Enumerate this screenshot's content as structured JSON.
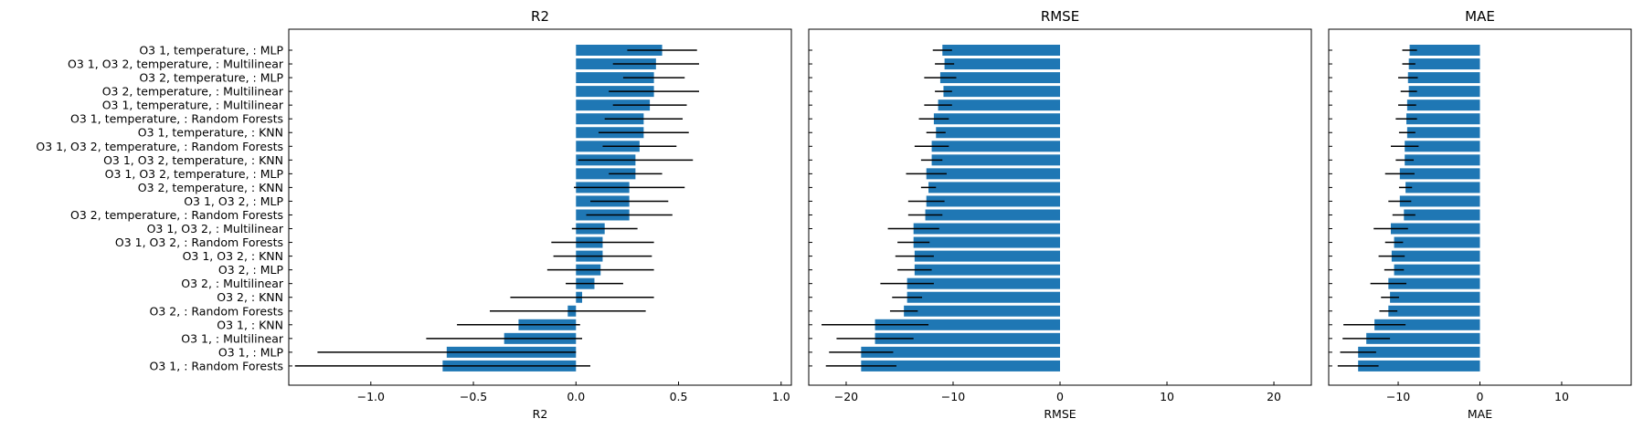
{
  "chart_data": [
    {
      "type": "bar",
      "orientation": "horizontal",
      "title": "R2",
      "xlabel": "R2",
      "xlim": [
        -1.4,
        1.05
      ],
      "xticks": [
        -1.0,
        -0.5,
        0.0,
        0.5,
        1.0
      ],
      "xtick_labels": [
        "−1.0",
        "−0.5",
        "0.0",
        "0.5",
        "1.0"
      ],
      "color": "#1f77b4",
      "categories": [
        "O3 1, temperature, : MLP",
        "O3 1, O3 2, temperature, : Multilinear",
        "O3 2, temperature, : MLP",
        "O3 2, temperature, : Multilinear",
        "O3 1, temperature, : Multilinear",
        "O3 1, temperature, : Random Forests",
        "O3 1, temperature, : KNN",
        "O3 1, O3 2, temperature, : Random Forests",
        "O3 1, O3 2, temperature, : KNN",
        "O3 1, O3 2, temperature, : MLP",
        "O3 2, temperature, : KNN",
        "O3 1, O3 2, : MLP",
        "O3 2, temperature, : Random Forests",
        "O3 1, O3 2, : Multilinear",
        "O3 1, O3 2, : Random Forests",
        "O3 1, O3 2, : KNN",
        "O3 2, : MLP",
        "O3 2, : Multilinear",
        "O3 2, : KNN",
        "O3 2, : Random Forests",
        "O3 1, : KNN",
        "O3 1, : Multilinear",
        "O3 1, : MLP",
        "O3 1, : Random Forests"
      ],
      "values": [
        0.42,
        0.39,
        0.38,
        0.38,
        0.36,
        0.33,
        0.33,
        0.31,
        0.29,
        0.29,
        0.26,
        0.26,
        0.26,
        0.14,
        0.13,
        0.13,
        0.12,
        0.09,
        0.03,
        -0.04,
        -0.28,
        -0.35,
        -0.63,
        -0.65
      ],
      "errors": [
        0.17,
        0.21,
        0.15,
        0.22,
        0.18,
        0.19,
        0.22,
        0.18,
        0.28,
        0.13,
        0.27,
        0.19,
        0.21,
        0.16,
        0.25,
        0.24,
        0.26,
        0.14,
        0.35,
        0.38,
        0.3,
        0.38,
        0.63,
        0.72
      ]
    },
    {
      "type": "bar",
      "orientation": "horizontal",
      "title": "RMSE",
      "xlabel": "RMSE",
      "xlim": [
        -23.5,
        23.5
      ],
      "xticks": [
        -20,
        -10,
        0,
        10,
        20
      ],
      "xtick_labels": [
        "−20",
        "−10",
        "0",
        "10",
        "20"
      ],
      "color": "#1f77b4",
      "values": [
        -11.0,
        -10.8,
        -11.2,
        -10.9,
        -11.4,
        -11.8,
        -11.6,
        -12.0,
        -12.0,
        -12.5,
        -12.3,
        -12.5,
        -12.6,
        -13.7,
        -13.7,
        -13.6,
        -13.6,
        -14.3,
        -14.3,
        -14.6,
        -17.3,
        -17.3,
        -18.6,
        -18.6
      ],
      "errors": [
        0.9,
        0.9,
        1.5,
        0.8,
        1.3,
        1.4,
        0.9,
        1.6,
        1.0,
        1.9,
        0.7,
        1.7,
        1.6,
        2.4,
        1.5,
        1.8,
        1.6,
        2.5,
        1.4,
        1.3,
        5.0,
        3.6,
        3.0,
        3.3
      ]
    },
    {
      "type": "bar",
      "orientation": "horizontal",
      "title": "MAE",
      "xlabel": "MAE",
      "xlim": [
        -18.5,
        18.5
      ],
      "xticks": [
        -10,
        0,
        10
      ],
      "xtick_labels": [
        "−10",
        "0",
        "10"
      ],
      "color": "#1f77b4",
      "values": [
        -8.6,
        -8.7,
        -8.8,
        -8.7,
        -8.9,
        -9.0,
        -8.9,
        -9.2,
        -9.2,
        -9.8,
        -9.1,
        -9.8,
        -9.3,
        -10.9,
        -10.5,
        -10.8,
        -10.5,
        -11.2,
        -11.0,
        -11.2,
        -12.9,
        -13.9,
        -14.9,
        -14.9
      ],
      "errors": [
        0.9,
        0.8,
        1.2,
        1.0,
        1.1,
        1.3,
        1.0,
        1.7,
        1.1,
        1.8,
        0.8,
        1.4,
        1.4,
        2.1,
        1.1,
        1.6,
        1.2,
        2.2,
        1.1,
        1.1,
        3.8,
        2.9,
        2.2,
        2.5
      ]
    }
  ]
}
